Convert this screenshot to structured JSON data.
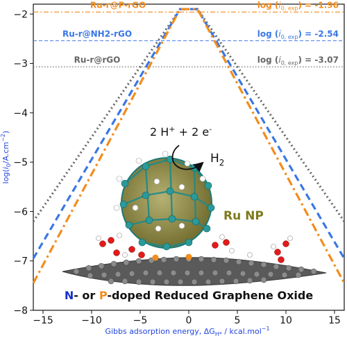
{
  "chart_data": {
    "type": "line",
    "xlabel": "Gibbs adsorption energy, ΔG",
    "xlabel_sub": "H*",
    "xlabel_unit": " / kcal.mol",
    "xlabel_sup": "−1",
    "ylabel_pre": "log(",
    "ylabel_i": "i",
    "ylabel_sub": "0",
    "ylabel_post": "/A.cm",
    "ylabel_sup": "−2",
    "ylabel_close": ")",
    "xlim": [
      -16,
      16
    ],
    "ylim": [
      -8,
      -1.8
    ],
    "xticks": [
      -15,
      -10,
      -5,
      0,
      5,
      10,
      15
    ],
    "yticks": [
      -8,
      -7,
      -6,
      -5,
      -4,
      -3,
      -2
    ],
    "xtick_labels": [
      "−15",
      "−10",
      "−5",
      "0",
      "5",
      "10",
      "15"
    ],
    "ytick_labels": [
      "−8",
      "−7",
      "−6",
      "−5",
      "−4",
      "−3",
      "−2"
    ],
    "grid": false,
    "series": [
      {
        "name": "Ru-r@rGO",
        "color": "#666666",
        "dash": "dotted",
        "x": [
          -16,
          -0.9,
          0.9,
          16
        ],
        "y": [
          -6.2,
          -1.9,
          -1.9,
          -6.2
        ],
        "hline": -3.07,
        "annotation": "log (i0,exp) = -3.07"
      },
      {
        "name": "Ru-r@NH2-rGO",
        "color": "#3a77e6",
        "dash": "dashed",
        "x": [
          -16,
          -0.9,
          0.9,
          16
        ],
        "y": [
          -6.95,
          -1.9,
          -1.9,
          -6.95
        ],
        "hline": -2.54,
        "annotation": "log (i0,exp) = -2.54"
      },
      {
        "name": "Ru-r@P-rGO",
        "color": "#f28c1c",
        "dash": "dashdot",
        "x": [
          -16,
          -0.9,
          0.9,
          16
        ],
        "y": [
          -7.45,
          -1.9,
          -1.9,
          -7.45
        ],
        "hline": -1.96,
        "annotation": "log (i0,exp) = -1.96"
      }
    ],
    "annotation_prefix": "log (",
    "annotation_i": "i",
    "annotation_sub": "0, exp",
    "annotation_suffix": ") = ",
    "annotation_values": [
      "-1.96",
      "-2.54",
      "-3.07"
    ],
    "reaction": {
      "left": "2 H",
      "sup1": "+",
      "mid": " + 2 e",
      "sup2": "-",
      "product": "H",
      "product_sub": "2"
    },
    "particle_label": "Ru NP",
    "support_label": {
      "n": "N",
      "dash_or": "- or ",
      "p": "P",
      "rest": "-doped Reduced Graphene Oxide"
    },
    "colors": {
      "grey": "#666666",
      "blue": "#3a77e6",
      "orange": "#f28c1c",
      "olive": "#7d7a1c",
      "n_blue": "#1530d0"
    }
  }
}
